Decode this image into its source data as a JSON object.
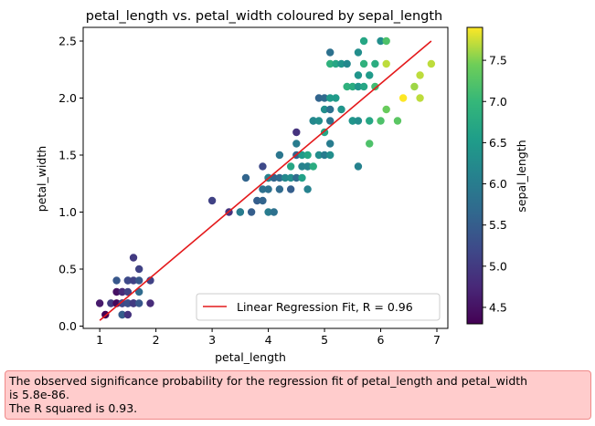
{
  "chart_data": {
    "type": "scatter",
    "title": "petal_length vs. petal_width coloured by sepal_length",
    "xlabel": "petal_length",
    "ylabel": "petal_width",
    "xlim": [
      0.705,
      7.195
    ],
    "ylim": [
      -0.02,
      2.62
    ],
    "xticks": [
      1,
      2,
      3,
      4,
      5,
      6,
      7
    ],
    "yticks": [
      0.0,
      0.5,
      1.0,
      1.5,
      2.0,
      2.5
    ],
    "grid": false,
    "legend": {
      "placement": "lower-right",
      "entries": [
        "Linear Regression Fit, R = 0.96"
      ]
    },
    "colorbar": {
      "label": "sepal_length",
      "range": [
        4.3,
        7.9
      ],
      "ticks": [
        4.5,
        5.0,
        5.5,
        6.0,
        6.5,
        7.0,
        7.5
      ],
      "colormap": "viridis"
    },
    "regression_line": {
      "color": "#e41a1c",
      "x": [
        1.0,
        6.9
      ],
      "y": [
        0.05,
        2.5
      ]
    },
    "points": [
      {
        "x": 1.0,
        "y": 0.2,
        "c": 4.6
      },
      {
        "x": 1.1,
        "y": 0.1,
        "c": 4.3
      },
      {
        "x": 1.2,
        "y": 0.2,
        "c": 5.8
      },
      {
        "x": 1.2,
        "y": 0.2,
        "c": 5.0
      },
      {
        "x": 1.3,
        "y": 0.2,
        "c": 4.7
      },
      {
        "x": 1.3,
        "y": 0.3,
        "c": 4.5
      },
      {
        "x": 1.3,
        "y": 0.4,
        "c": 5.4
      },
      {
        "x": 1.3,
        "y": 0.2,
        "c": 4.4
      },
      {
        "x": 1.4,
        "y": 0.2,
        "c": 5.1
      },
      {
        "x": 1.4,
        "y": 0.2,
        "c": 4.9
      },
      {
        "x": 1.4,
        "y": 0.3,
        "c": 4.6
      },
      {
        "x": 1.4,
        "y": 0.1,
        "c": 4.9
      },
      {
        "x": 1.4,
        "y": 0.2,
        "c": 4.4
      },
      {
        "x": 1.4,
        "y": 0.3,
        "c": 4.8
      },
      {
        "x": 1.4,
        "y": 0.2,
        "c": 5.2
      },
      {
        "x": 1.4,
        "y": 0.1,
        "c": 5.5
      },
      {
        "x": 1.5,
        "y": 0.2,
        "c": 5.0
      },
      {
        "x": 1.5,
        "y": 0.4,
        "c": 5.7
      },
      {
        "x": 1.5,
        "y": 0.2,
        "c": 5.4
      },
      {
        "x": 1.5,
        "y": 0.1,
        "c": 4.9
      },
      {
        "x": 1.5,
        "y": 0.3,
        "c": 5.1
      },
      {
        "x": 1.5,
        "y": 0.2,
        "c": 5.3
      },
      {
        "x": 1.5,
        "y": 0.4,
        "c": 5.2
      },
      {
        "x": 1.6,
        "y": 0.2,
        "c": 4.8
      },
      {
        "x": 1.6,
        "y": 0.6,
        "c": 5.0
      },
      {
        "x": 1.6,
        "y": 0.4,
        "c": 5.1
      },
      {
        "x": 1.6,
        "y": 0.2,
        "c": 4.7
      },
      {
        "x": 1.6,
        "y": 0.2,
        "c": 5.0
      },
      {
        "x": 1.7,
        "y": 0.4,
        "c": 5.4
      },
      {
        "x": 1.7,
        "y": 0.3,
        "c": 5.7
      },
      {
        "x": 1.7,
        "y": 0.2,
        "c": 5.4
      },
      {
        "x": 1.7,
        "y": 0.5,
        "c": 5.1
      },
      {
        "x": 1.9,
        "y": 0.2,
        "c": 4.8
      },
      {
        "x": 1.9,
        "y": 0.4,
        "c": 5.1
      },
      {
        "x": 3.0,
        "y": 1.1,
        "c": 5.1
      },
      {
        "x": 3.3,
        "y": 1.0,
        "c": 4.9
      },
      {
        "x": 3.5,
        "y": 1.0,
        "c": 5.7
      },
      {
        "x": 3.5,
        "y": 1.0,
        "c": 6.0
      },
      {
        "x": 3.6,
        "y": 1.3,
        "c": 5.6
      },
      {
        "x": 3.7,
        "y": 1.0,
        "c": 5.5
      },
      {
        "x": 3.8,
        "y": 1.1,
        "c": 5.5
      },
      {
        "x": 3.9,
        "y": 1.1,
        "c": 5.6
      },
      {
        "x": 3.9,
        "y": 1.2,
        "c": 5.8
      },
      {
        "x": 3.9,
        "y": 1.4,
        "c": 5.2
      },
      {
        "x": 4.0,
        "y": 1.0,
        "c": 6.0
      },
      {
        "x": 4.0,
        "y": 1.3,
        "c": 5.5
      },
      {
        "x": 4.0,
        "y": 1.2,
        "c": 5.8
      },
      {
        "x": 4.0,
        "y": 1.3,
        "c": 6.1
      },
      {
        "x": 4.1,
        "y": 1.0,
        "c": 5.8
      },
      {
        "x": 4.1,
        "y": 1.3,
        "c": 5.6
      },
      {
        "x": 4.2,
        "y": 1.3,
        "c": 5.7
      },
      {
        "x": 4.2,
        "y": 1.2,
        "c": 5.7
      },
      {
        "x": 4.2,
        "y": 1.5,
        "c": 5.9
      },
      {
        "x": 4.3,
        "y": 1.3,
        "c": 6.2
      },
      {
        "x": 4.4,
        "y": 1.4,
        "c": 6.7
      },
      {
        "x": 4.4,
        "y": 1.2,
        "c": 5.5
      },
      {
        "x": 4.4,
        "y": 1.3,
        "c": 6.3
      },
      {
        "x": 4.5,
        "y": 1.5,
        "c": 5.6
      },
      {
        "x": 4.5,
        "y": 1.3,
        "c": 5.7
      },
      {
        "x": 4.5,
        "y": 1.7,
        "c": 4.9
      },
      {
        "x": 4.5,
        "y": 1.6,
        "c": 6.0
      },
      {
        "x": 4.6,
        "y": 1.3,
        "c": 6.6
      },
      {
        "x": 4.6,
        "y": 1.4,
        "c": 6.1
      },
      {
        "x": 4.6,
        "y": 1.5,
        "c": 6.5
      },
      {
        "x": 4.7,
        "y": 1.4,
        "c": 7.0
      },
      {
        "x": 4.7,
        "y": 1.2,
        "c": 6.1
      },
      {
        "x": 4.7,
        "y": 1.5,
        "c": 6.7
      },
      {
        "x": 4.7,
        "y": 1.4,
        "c": 6.1
      },
      {
        "x": 4.8,
        "y": 1.8,
        "c": 5.9
      },
      {
        "x": 4.8,
        "y": 1.4,
        "c": 6.8
      },
      {
        "x": 4.8,
        "y": 1.8,
        "c": 6.2
      },
      {
        "x": 4.9,
        "y": 1.5,
        "c": 6.3
      },
      {
        "x": 4.9,
        "y": 1.8,
        "c": 6.3
      },
      {
        "x": 4.9,
        "y": 2.0,
        "c": 5.6
      },
      {
        "x": 5.0,
        "y": 1.7,
        "c": 6.7
      },
      {
        "x": 5.0,
        "y": 1.5,
        "c": 6.0
      },
      {
        "x": 5.0,
        "y": 2.0,
        "c": 5.7
      },
      {
        "x": 5.0,
        "y": 1.9,
        "c": 6.3
      },
      {
        "x": 5.1,
        "y": 1.6,
        "c": 6.0
      },
      {
        "x": 5.1,
        "y": 1.9,
        "c": 5.8
      },
      {
        "x": 5.1,
        "y": 2.0,
        "c": 6.5
      },
      {
        "x": 5.1,
        "y": 1.8,
        "c": 5.9
      },
      {
        "x": 5.1,
        "y": 1.5,
        "c": 6.3
      },
      {
        "x": 5.1,
        "y": 2.3,
        "c": 6.9
      },
      {
        "x": 5.1,
        "y": 2.4,
        "c": 5.8
      },
      {
        "x": 5.2,
        "y": 2.3,
        "c": 6.7
      },
      {
        "x": 5.2,
        "y": 2.0,
        "c": 6.5
      },
      {
        "x": 5.3,
        "y": 1.9,
        "c": 6.4
      },
      {
        "x": 5.3,
        "y": 2.3,
        "c": 6.4
      },
      {
        "x": 5.4,
        "y": 2.1,
        "c": 6.9
      },
      {
        "x": 5.4,
        "y": 2.3,
        "c": 6.2
      },
      {
        "x": 5.5,
        "y": 1.8,
        "c": 6.5
      },
      {
        "x": 5.5,
        "y": 2.1,
        "c": 6.8
      },
      {
        "x": 5.5,
        "y": 1.8,
        "c": 6.4
      },
      {
        "x": 5.6,
        "y": 1.4,
        "c": 6.1
      },
      {
        "x": 5.6,
        "y": 2.2,
        "c": 6.4
      },
      {
        "x": 5.6,
        "y": 2.4,
        "c": 6.3
      },
      {
        "x": 5.6,
        "y": 1.8,
        "c": 6.3
      },
      {
        "x": 5.6,
        "y": 2.1,
        "c": 6.4
      },
      {
        "x": 5.7,
        "y": 2.5,
        "c": 6.7
      },
      {
        "x": 5.7,
        "y": 2.3,
        "c": 6.9
      },
      {
        "x": 5.7,
        "y": 2.1,
        "c": 6.7
      },
      {
        "x": 5.8,
        "y": 1.6,
        "c": 7.2
      },
      {
        "x": 5.8,
        "y": 2.2,
        "c": 6.5
      },
      {
        "x": 5.8,
        "y": 1.8,
        "c": 6.7
      },
      {
        "x": 5.9,
        "y": 2.1,
        "c": 7.1
      },
      {
        "x": 5.9,
        "y": 2.3,
        "c": 6.8
      },
      {
        "x": 6.0,
        "y": 1.8,
        "c": 7.2
      },
      {
        "x": 6.0,
        "y": 2.5,
        "c": 6.3
      },
      {
        "x": 6.1,
        "y": 1.9,
        "c": 7.4
      },
      {
        "x": 6.1,
        "y": 2.3,
        "c": 7.7
      },
      {
        "x": 6.1,
        "y": 2.5,
        "c": 7.2
      },
      {
        "x": 6.3,
        "y": 1.8,
        "c": 7.3
      },
      {
        "x": 6.4,
        "y": 2.0,
        "c": 7.9
      },
      {
        "x": 6.6,
        "y": 2.1,
        "c": 7.6
      },
      {
        "x": 6.7,
        "y": 2.2,
        "c": 7.7
      },
      {
        "x": 6.7,
        "y": 2.0,
        "c": 7.7
      },
      {
        "x": 6.9,
        "y": 2.3,
        "c": 7.7
      }
    ]
  },
  "result_box": {
    "line1": "The observed significance probability for the regression fit of petal_length and petal_width",
    "line2": "is 5.8e-86.",
    "line3": "The R squared is 0.93."
  }
}
